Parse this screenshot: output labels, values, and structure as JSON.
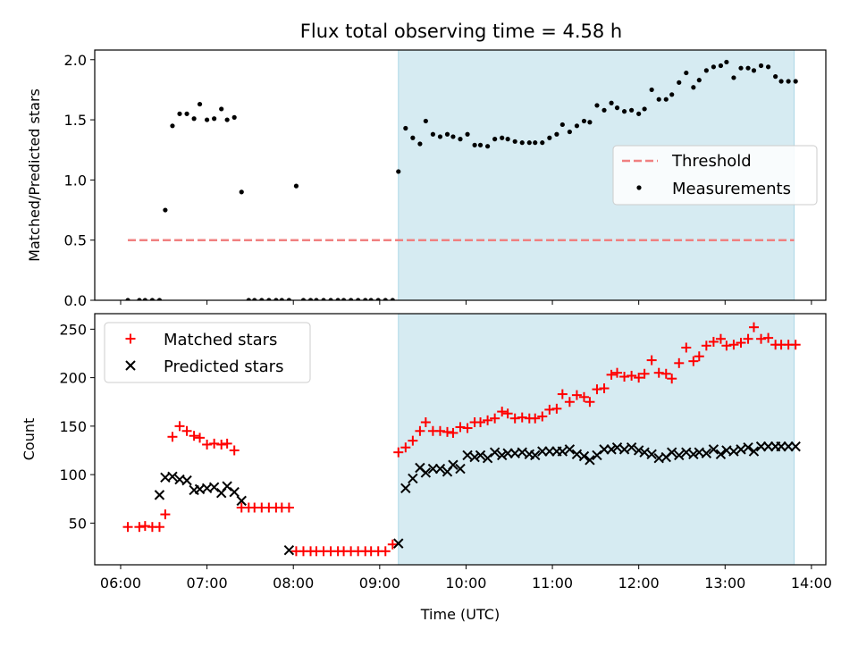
{
  "title": "Flux total observing time = 4.58 h",
  "colors": {
    "threshold": "#f08080",
    "measurement": "#000000",
    "matched": "#ff0000",
    "predicted": "#000000",
    "shade": "#add8e6"
  },
  "chart_data": [
    {
      "type": "scatter",
      "panel": "top",
      "ylabel": "Matched/Predicted stars",
      "xlim": [
        "05:42",
        "14:10"
      ],
      "ylim": [
        0,
        2.08
      ],
      "yticks": [
        "0.0",
        "0.5",
        "1.0",
        "1.5",
        "2.0"
      ],
      "shaded_region": [
        "09:13",
        "13:48"
      ],
      "legend": {
        "position": "center-right",
        "entries": [
          "Threshold",
          "Measurements"
        ]
      },
      "threshold": {
        "name": "Threshold",
        "y": 0.5,
        "x_range": [
          "06:05",
          "13:48"
        ]
      },
      "series": [
        {
          "name": "Measurements",
          "x": [
            "06:05",
            "06:13",
            "06:17",
            "06:22",
            "06:27",
            "06:31",
            "06:36",
            "06:41",
            "06:46",
            "06:51",
            "06:55",
            "07:00",
            "07:05",
            "07:10",
            "07:14",
            "07:19",
            "07:24",
            "07:29",
            "07:33",
            "07:38",
            "07:43",
            "07:48",
            "07:52",
            "07:57",
            "08:02",
            "08:07",
            "08:12",
            "08:16",
            "08:21",
            "08:26",
            "08:31",
            "08:35",
            "08:40",
            "08:45",
            "08:50",
            "08:54",
            "08:59",
            "09:04",
            "09:09",
            "09:13",
            "09:18",
            "09:23",
            "09:28",
            "09:32",
            "09:37",
            "09:42",
            "09:47",
            "09:51",
            "09:56",
            "10:01",
            "10:06",
            "10:10",
            "10:15",
            "10:20",
            "10:25",
            "10:29",
            "10:34",
            "10:39",
            "10:44",
            "10:48",
            "10:53",
            "10:58",
            "11:03",
            "11:07",
            "11:12",
            "11:17",
            "11:22",
            "11:26",
            "11:31",
            "11:36",
            "11:41",
            "11:45",
            "11:50",
            "11:55",
            "12:00",
            "12:04",
            "12:09",
            "12:14",
            "12:19",
            "12:23",
            "12:28",
            "12:33",
            "12:38",
            "12:42",
            "12:47",
            "12:52",
            "12:57",
            "13:01",
            "13:06",
            "13:11",
            "13:16",
            "13:20",
            "13:25",
            "13:30",
            "13:35",
            "13:39",
            "13:44",
            "13:49"
          ],
          "y": [
            0,
            0,
            0,
            0,
            0,
            0.75,
            1.45,
            1.55,
            1.55,
            1.51,
            1.63,
            1.5,
            1.51,
            1.59,
            1.5,
            1.52,
            0.9,
            0,
            0,
            0,
            0,
            0,
            0,
            0,
            0.95,
            0,
            0,
            0,
            0,
            0,
            0,
            0,
            0,
            0,
            0,
            0,
            0,
            0,
            0,
            1.07,
            1.43,
            1.35,
            1.3,
            1.49,
            1.38,
            1.36,
            1.38,
            1.36,
            1.34,
            1.38,
            1.29,
            1.29,
            1.28,
            1.34,
            1.35,
            1.34,
            1.32,
            1.31,
            1.31,
            1.31,
            1.31,
            1.35,
            1.38,
            1.46,
            1.4,
            1.45,
            1.49,
            1.48,
            1.62,
            1.58,
            1.64,
            1.6,
            1.57,
            1.58,
            1.55,
            1.59,
            1.75,
            1.67,
            1.67,
            1.71,
            1.81,
            1.89,
            1.77,
            1.83,
            1.91,
            1.94,
            1.95,
            1.98,
            1.85,
            1.93,
            1.93,
            1.91,
            1.95,
            1.94,
            1.86,
            1.82,
            1.82,
            1.82
          ]
        }
      ]
    },
    {
      "type": "scatter",
      "panel": "bottom",
      "xlabel": "Time (UTC)",
      "ylabel": "Count",
      "xlim": [
        "05:42",
        "14:10"
      ],
      "ylim": [
        7,
        266
      ],
      "yticks": [
        "50",
        "100",
        "150",
        "200",
        "250"
      ],
      "xticks": [
        "06:00",
        "07:00",
        "08:00",
        "09:00",
        "10:00",
        "11:00",
        "12:00",
        "13:00",
        "14:00"
      ],
      "shaded_region": [
        "09:13",
        "13:48"
      ],
      "legend": {
        "position": "top-left",
        "entries": [
          "Matched stars",
          "Predicted stars"
        ]
      },
      "series": [
        {
          "name": "Matched stars",
          "marker": "plus",
          "x": [
            "06:05",
            "06:13",
            "06:17",
            "06:22",
            "06:27",
            "06:31",
            "06:36",
            "06:41",
            "06:46",
            "06:51",
            "06:55",
            "07:00",
            "07:05",
            "07:10",
            "07:14",
            "07:19",
            "07:24",
            "07:29",
            "07:33",
            "07:38",
            "07:43",
            "07:48",
            "07:52",
            "07:57",
            "08:02",
            "08:07",
            "08:12",
            "08:16",
            "08:21",
            "08:26",
            "08:31",
            "08:35",
            "08:40",
            "08:45",
            "08:50",
            "08:54",
            "08:59",
            "09:04",
            "09:09",
            "09:13",
            "09:18",
            "09:23",
            "09:28",
            "09:32",
            "09:37",
            "09:42",
            "09:47",
            "09:51",
            "09:56",
            "10:01",
            "10:06",
            "10:10",
            "10:15",
            "10:20",
            "10:25",
            "10:29",
            "10:34",
            "10:39",
            "10:44",
            "10:48",
            "10:53",
            "10:58",
            "11:03",
            "11:07",
            "11:12",
            "11:17",
            "11:22",
            "11:26",
            "11:31",
            "11:36",
            "11:41",
            "11:45",
            "11:50",
            "11:55",
            "12:00",
            "12:04",
            "12:09",
            "12:14",
            "12:19",
            "12:23",
            "12:28",
            "12:33",
            "12:38",
            "12:42",
            "12:47",
            "12:52",
            "12:57",
            "13:01",
            "13:06",
            "13:11",
            "13:16",
            "13:20",
            "13:25",
            "13:30",
            "13:35",
            "13:39",
            "13:44",
            "13:49"
          ],
          "y": [
            46,
            46,
            47,
            46,
            46,
            59,
            139,
            150,
            145,
            140,
            138,
            131,
            132,
            131,
            132,
            125,
            66,
            66,
            66,
            66,
            66,
            66,
            66,
            66,
            21,
            21,
            21,
            21,
            21,
            21,
            21,
            21,
            21,
            21,
            21,
            21,
            21,
            21,
            28,
            123,
            128,
            135,
            145,
            154,
            145,
            145,
            144,
            143,
            149,
            148,
            154,
            154,
            156,
            158,
            165,
            163,
            158,
            159,
            158,
            158,
            160,
            167,
            168,
            183,
            175,
            182,
            180,
            175,
            188,
            189,
            203,
            205,
            201,
            202,
            200,
            204,
            218,
            205,
            204,
            199,
            215,
            231,
            217,
            222,
            233,
            237,
            240,
            233,
            234,
            236,
            240,
            252,
            240,
            241,
            234,
            234,
            234,
            234
          ]
        },
        {
          "name": "Predicted stars",
          "marker": "x",
          "x": [
            "07:57",
            "09:13",
            "09:18",
            "09:23",
            "09:28",
            "09:32",
            "09:37",
            "09:42",
            "09:47",
            "09:51",
            "09:56",
            "10:01",
            "10:06",
            "10:10",
            "10:15",
            "10:20",
            "10:25",
            "10:29",
            "10:34",
            "10:39",
            "10:44",
            "10:48",
            "10:53",
            "10:58",
            "11:03",
            "11:07",
            "11:12",
            "11:17",
            "11:22",
            "11:26",
            "11:31",
            "11:36",
            "11:41",
            "11:45",
            "11:50",
            "11:55",
            "12:00",
            "12:04",
            "12:09",
            "12:14",
            "12:19",
            "12:23",
            "12:28",
            "12:33",
            "12:38",
            "12:42",
            "12:47",
            "12:52",
            "12:57",
            "13:01",
            "13:06",
            "13:11",
            "13:16",
            "13:20",
            "13:25",
            "13:30",
            "13:35",
            "13:39",
            "13:44",
            "13:49",
            "06:27",
            "06:31",
            "06:36",
            "06:41",
            "06:46",
            "06:51",
            "06:55",
            "07:00",
            "07:05",
            "07:10",
            "07:14",
            "07:19",
            "07:24"
          ],
          "y": [
            22,
            29,
            86,
            96,
            107,
            102,
            106,
            106,
            103,
            110,
            106,
            120,
            118,
            120,
            117,
            123,
            120,
            122,
            122,
            123,
            121,
            120,
            124,
            124,
            124,
            124,
            126,
            121,
            119,
            115,
            120,
            126,
            126,
            128,
            126,
            128,
            125,
            123,
            121,
            117,
            118,
            123,
            120,
            123,
            121,
            123,
            122,
            126,
            121,
            125,
            124,
            126,
            128,
            124,
            129,
            129,
            129,
            129,
            129,
            129,
            79,
            97,
            98,
            95,
            94,
            84,
            85,
            86,
            87,
            81,
            88,
            82,
            73
          ]
        }
      ]
    }
  ]
}
